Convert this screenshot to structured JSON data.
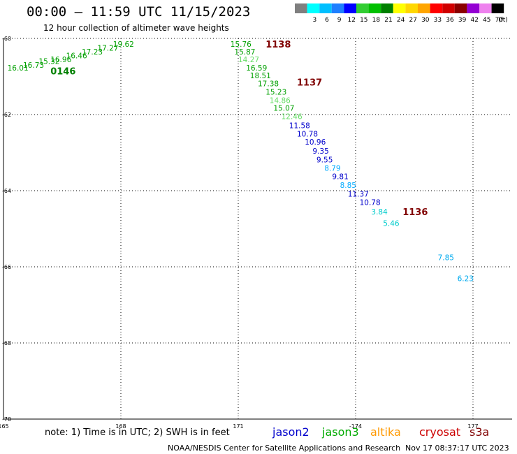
{
  "title": "00:00 – 11:59 UTC 11/15/2023",
  "subtitle": "12 hour collection of altimeter wave heights",
  "footer": {
    "note": "note:  1) Time is in UTC;  2) SWH is in feet",
    "credit": "NOAA/NESDIS Center for Satellite Applications and Research",
    "timestamp": "Nov 17 08:37:17 UTC 2023"
  },
  "legend": {
    "unit": "(ft)",
    "bins": [
      {
        "label": "",
        "color": "#7f7f7f"
      },
      {
        "label": "3",
        "color": "#00ffff"
      },
      {
        "label": "6",
        "color": "#00bfff"
      },
      {
        "label": "9",
        "color": "#1e7fff"
      },
      {
        "label": "12",
        "color": "#0000ff"
      },
      {
        "label": "15",
        "color": "#32cd32"
      },
      {
        "label": "18",
        "color": "#00c000"
      },
      {
        "label": "21",
        "color": "#008000"
      },
      {
        "label": "24",
        "color": "#ffff00"
      },
      {
        "label": "27",
        "color": "#ffd700"
      },
      {
        "label": "30",
        "color": "#ffa500"
      },
      {
        "label": "33",
        "color": "#ff0000"
      },
      {
        "label": "36",
        "color": "#d00000"
      },
      {
        "label": "39",
        "color": "#8b0000"
      },
      {
        "label": "42",
        "color": "#9400d3"
      },
      {
        "label": "45",
        "color": "#ee82ee"
      },
      {
        "label": "70",
        "color": "#000000"
      }
    ]
  },
  "satellites": [
    {
      "name": "jason2",
      "color": "#0000cc"
    },
    {
      "name": "jason3",
      "color": "#00aa00"
    },
    {
      "name": "altika",
      "color": "#ff9900"
    },
    {
      "name": "cryosat",
      "color": "#cc0000"
    },
    {
      "name": "s3a",
      "color": "#800000"
    }
  ],
  "map": {
    "lon_range": [
      -165,
      -178
    ],
    "lat_range": [
      -60,
      -70
    ],
    "lon_ticks": [
      {
        "value": -165,
        "label": "165"
      },
      {
        "value": -168,
        "label": "168"
      },
      {
        "value": -171,
        "label": "171"
      },
      {
        "value": -174,
        "label": "-174"
      },
      {
        "value": -177,
        "label": "177"
      }
    ],
    "lat_ticks": [
      {
        "value": -60,
        "label": "-60"
      },
      {
        "value": -62,
        "label": "-62"
      },
      {
        "value": -64,
        "label": "-64"
      },
      {
        "value": -66,
        "label": "-66"
      },
      {
        "value": -68,
        "label": "-68"
      },
      {
        "value": -70,
        "label": "-70"
      }
    ],
    "grid": true
  },
  "observations": [
    {
      "lon": -165.1,
      "lat": -60.77,
      "text": "16.01",
      "color": "#00a000"
    },
    {
      "lon": -165.5,
      "lat": -60.7,
      "text": "16.73",
      "color": "#00a000"
    },
    {
      "lon": -165.9,
      "lat": -60.6,
      "text": "15.32",
      "color": "#00a000"
    },
    {
      "lon": -166.2,
      "lat": -60.55,
      "text": "16.96",
      "color": "#00a000"
    },
    {
      "lon": -166.6,
      "lat": -60.45,
      "text": "16.46",
      "color": "#00a000"
    },
    {
      "lon": -167.0,
      "lat": -60.35,
      "text": "17.23",
      "color": "#00a000"
    },
    {
      "lon": -167.4,
      "lat": -60.25,
      "text": "17.27",
      "color": "#00a000"
    },
    {
      "lon": -167.8,
      "lat": -60.15,
      "text": "19.62",
      "color": "#00a000"
    },
    {
      "lon": -170.8,
      "lat": -60.15,
      "text": "15.76",
      "color": "#00a000"
    },
    {
      "lon": -170.9,
      "lat": -60.35,
      "text": "15.87",
      "color": "#00a000"
    },
    {
      "lon": -171.0,
      "lat": -60.55,
      "text": "14.27",
      "color": "#66dd66"
    },
    {
      "lon": -171.2,
      "lat": -60.77,
      "text": "16.59",
      "color": "#00a000"
    },
    {
      "lon": -171.3,
      "lat": -60.97,
      "text": "18.51",
      "color": "#00a000"
    },
    {
      "lon": -171.5,
      "lat": -61.18,
      "text": "17.38",
      "color": "#00a000"
    },
    {
      "lon": -171.7,
      "lat": -61.4,
      "text": "15.23",
      "color": "#00a000"
    },
    {
      "lon": -171.8,
      "lat": -61.62,
      "text": "14.86",
      "color": "#66dd66"
    },
    {
      "lon": -171.9,
      "lat": -61.83,
      "text": "15.07",
      "color": "#00a000"
    },
    {
      "lon": -172.1,
      "lat": -62.05,
      "text": "12.46",
      "color": "#66dd66"
    },
    {
      "lon": -172.3,
      "lat": -62.28,
      "text": "11.58",
      "color": "#0000cc"
    },
    {
      "lon": -172.5,
      "lat": -62.5,
      "text": "10.78",
      "color": "#0000cc"
    },
    {
      "lon": -172.7,
      "lat": -62.72,
      "text": "10.96",
      "color": "#0000cc"
    },
    {
      "lon": -172.9,
      "lat": -62.95,
      "text": "9.35",
      "color": "#0000cc"
    },
    {
      "lon": -173.0,
      "lat": -63.18,
      "text": "9.55",
      "color": "#0000cc"
    },
    {
      "lon": -173.2,
      "lat": -63.4,
      "text": "8.79",
      "color": "#00aaff"
    },
    {
      "lon": -173.4,
      "lat": -63.62,
      "text": "9.81",
      "color": "#0000cc"
    },
    {
      "lon": -173.6,
      "lat": -63.85,
      "text": "8.85",
      "color": "#00aaff"
    },
    {
      "lon": -173.8,
      "lat": -64.08,
      "text": "11.37",
      "color": "#0000cc"
    },
    {
      "lon": -174.1,
      "lat": -64.3,
      "text": "10.78",
      "color": "#0000cc"
    },
    {
      "lon": -174.4,
      "lat": -64.55,
      "text": "3.84",
      "color": "#00cccc"
    },
    {
      "lon": -174.7,
      "lat": -64.85,
      "text": "5.46",
      "color": "#00cccc"
    },
    {
      "lon": -176.1,
      "lat": -65.75,
      "text": "7.85",
      "color": "#00aaee"
    },
    {
      "lon": -176.6,
      "lat": -66.3,
      "text": "6.23",
      "color": "#00aaee"
    }
  ],
  "time_labels": [
    {
      "lon": -166.2,
      "lat": -60.85,
      "text": "0146",
      "color": "#008000"
    },
    {
      "lon": -171.7,
      "lat": -60.15,
      "text": "1138",
      "color": "#800000"
    },
    {
      "lon": -172.5,
      "lat": -61.15,
      "text": "1137",
      "color": "#800000"
    },
    {
      "lon": -175.2,
      "lat": -64.55,
      "text": "1136",
      "color": "#800000"
    }
  ]
}
